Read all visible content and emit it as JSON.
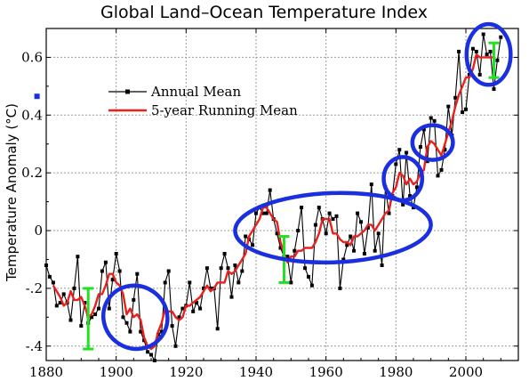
{
  "chart_data": {
    "type": "line",
    "title": "Global Land–Ocean Temperature Index",
    "xlabel": "",
    "ylabel": "Temperature Anomaly (°C)",
    "xlim": [
      1880,
      2015
    ],
    "ylim": [
      -0.45,
      0.7
    ],
    "xticks": [
      1880,
      1900,
      1920,
      1940,
      1960,
      1980,
      2000
    ],
    "xtick_labels": [
      "1880",
      "1900",
      "1920",
      "1940",
      "1960",
      "1980",
      "2000"
    ],
    "yticks": [
      -0.4,
      -0.2,
      0,
      0.2,
      0.4,
      0.6
    ],
    "ytick_labels": [
      "-.4",
      "-.2",
      "0",
      "0.2",
      "0.4",
      "0.6"
    ],
    "grid": true,
    "legend_position": "upper-left",
    "series": [
      {
        "name": "Annual Mean",
        "color": "#000000",
        "marker": "square",
        "x": [
          1880,
          1881,
          1882,
          1883,
          1884,
          1885,
          1886,
          1887,
          1888,
          1889,
          1890,
          1891,
          1892,
          1893,
          1894,
          1895,
          1896,
          1897,
          1898,
          1899,
          1900,
          1901,
          1902,
          1903,
          1904,
          1905,
          1906,
          1907,
          1908,
          1909,
          1910,
          1911,
          1912,
          1913,
          1914,
          1915,
          1916,
          1917,
          1918,
          1919,
          1920,
          1921,
          1922,
          1923,
          1924,
          1925,
          1926,
          1927,
          1928,
          1929,
          1930,
          1931,
          1932,
          1933,
          1934,
          1935,
          1936,
          1937,
          1938,
          1939,
          1940,
          1941,
          1942,
          1943,
          1944,
          1945,
          1946,
          1947,
          1948,
          1949,
          1950,
          1951,
          1952,
          1953,
          1954,
          1955,
          1956,
          1957,
          1958,
          1959,
          1960,
          1961,
          1962,
          1963,
          1964,
          1965,
          1966,
          1967,
          1968,
          1969,
          1970,
          1971,
          1972,
          1973,
          1974,
          1975,
          1976,
          1977,
          1978,
          1979,
          1980,
          1981,
          1982,
          1983,
          1984,
          1985,
          1986,
          1987,
          1988,
          1989,
          1990,
          1991,
          1992,
          1993,
          1994,
          1995,
          1996,
          1997,
          1998,
          1999,
          2000,
          2001,
          2002,
          2003,
          2004,
          2005,
          2006,
          2007,
          2008,
          2009,
          2010
        ],
        "y": [
          -0.12,
          -0.16,
          -0.18,
          -0.26,
          -0.25,
          -0.22,
          -0.25,
          -0.31,
          -0.2,
          -0.09,
          -0.33,
          -0.25,
          -0.32,
          -0.3,
          -0.29,
          -0.27,
          -0.14,
          -0.11,
          -0.27,
          -0.17,
          -0.08,
          -0.14,
          -0.3,
          -0.32,
          -0.35,
          -0.24,
          -0.15,
          -0.35,
          -0.38,
          -0.42,
          -0.43,
          -0.45,
          -0.36,
          -0.35,
          -0.18,
          -0.14,
          -0.33,
          -0.4,
          -0.3,
          -0.27,
          -0.26,
          -0.18,
          -0.28,
          -0.25,
          -0.27,
          -0.2,
          -0.13,
          -0.2,
          -0.2,
          -0.34,
          -0.13,
          -0.08,
          -0.13,
          -0.23,
          -0.12,
          -0.18,
          -0.14,
          -0.02,
          -0.03,
          -0.05,
          0.06,
          0.08,
          0.06,
          0.06,
          0.14,
          0.04,
          -0.01,
          -0.06,
          -0.09,
          -0.09,
          -0.18,
          -0.07,
          0.0,
          0.08,
          -0.13,
          -0.16,
          -0.19,
          0.02,
          0.08,
          0.04,
          -0.01,
          0.06,
          0.04,
          0.05,
          -0.2,
          -0.1,
          -0.05,
          -0.02,
          -0.07,
          0.06,
          0.03,
          -0.08,
          0.01,
          0.16,
          -0.07,
          -0.01,
          -0.12,
          0.15,
          0.06,
          0.12,
          0.23,
          0.28,
          0.09,
          0.27,
          0.12,
          0.08,
          0.15,
          0.29,
          0.35,
          0.24,
          0.39,
          0.38,
          0.19,
          0.21,
          0.28,
          0.43,
          0.33,
          0.46,
          0.62,
          0.41,
          0.42,
          0.54,
          0.63,
          0.62,
          0.54,
          0.68,
          0.61,
          0.62,
          0.49,
          0.59,
          0.67
        ]
      },
      {
        "name": "5-year Running Mean",
        "color": "#e8201e",
        "x": [
          1882,
          1883,
          1884,
          1885,
          1886,
          1887,
          1888,
          1889,
          1890,
          1891,
          1892,
          1893,
          1894,
          1895,
          1896,
          1897,
          1898,
          1899,
          1900,
          1901,
          1902,
          1903,
          1904,
          1905,
          1906,
          1907,
          1908,
          1909,
          1910,
          1911,
          1912,
          1913,
          1914,
          1915,
          1916,
          1917,
          1918,
          1919,
          1920,
          1921,
          1922,
          1923,
          1924,
          1925,
          1926,
          1927,
          1928,
          1929,
          1930,
          1931,
          1932,
          1933,
          1934,
          1935,
          1936,
          1937,
          1938,
          1939,
          1940,
          1941,
          1942,
          1943,
          1944,
          1945,
          1946,
          1947,
          1948,
          1949,
          1950,
          1951,
          1952,
          1953,
          1954,
          1955,
          1956,
          1957,
          1958,
          1959,
          1960,
          1961,
          1962,
          1963,
          1964,
          1965,
          1966,
          1967,
          1968,
          1969,
          1970,
          1971,
          1972,
          1973,
          1974,
          1975,
          1976,
          1977,
          1978,
          1979,
          1980,
          1981,
          1982,
          1983,
          1984,
          1985,
          1986,
          1987,
          1988,
          1989,
          1990,
          1991,
          1992,
          1993,
          1994,
          1995,
          1996,
          1997,
          1998,
          1999,
          2000,
          2001,
          2002,
          2003,
          2004,
          2005,
          2006,
          2007,
          2008
        ],
        "y": [
          -0.19,
          -0.21,
          -0.23,
          -0.26,
          -0.25,
          -0.21,
          -0.24,
          -0.24,
          -0.23,
          -0.26,
          -0.3,
          -0.29,
          -0.26,
          -0.22,
          -0.22,
          -0.19,
          -0.15,
          -0.15,
          -0.18,
          -0.19,
          -0.22,
          -0.29,
          -0.27,
          -0.3,
          -0.29,
          -0.31,
          -0.37,
          -0.4,
          -0.41,
          -0.4,
          -0.35,
          -0.32,
          -0.27,
          -0.28,
          -0.28,
          -0.3,
          -0.31,
          -0.3,
          -0.26,
          -0.26,
          -0.25,
          -0.24,
          -0.23,
          -0.21,
          -0.19,
          -0.21,
          -0.2,
          -0.18,
          -0.18,
          -0.18,
          -0.14,
          -0.15,
          -0.14,
          -0.12,
          -0.1,
          -0.08,
          -0.02,
          0.0,
          0.02,
          0.04,
          0.08,
          0.08,
          0.06,
          0.04,
          0.03,
          -0.04,
          -0.08,
          -0.11,
          -0.09,
          -0.09,
          -0.07,
          -0.07,
          -0.06,
          -0.06,
          -0.06,
          -0.04,
          -0.01,
          0.04,
          0.04,
          0.04,
          -0.01,
          -0.01,
          -0.03,
          -0.04,
          -0.04,
          -0.05,
          -0.02,
          -0.02,
          -0.01,
          0.0,
          0.02,
          0.02,
          0.0,
          0.02,
          0.04,
          0.06,
          0.07,
          0.13,
          0.15,
          0.2,
          0.19,
          0.16,
          0.18,
          0.16,
          0.17,
          0.2,
          0.21,
          0.29,
          0.31,
          0.3,
          0.28,
          0.26,
          0.3,
          0.34,
          0.38,
          0.43,
          0.47,
          0.5,
          0.53,
          0.53,
          0.56,
          0.61,
          0.6,
          0.6,
          0.6,
          0.6,
          0.6
        ]
      }
    ],
    "error_bars": [
      {
        "x": 1892,
        "y_low": -0.41,
        "y_high": -0.2,
        "color": "#22e022"
      },
      {
        "x": 1948,
        "y_low": -0.18,
        "y_high": -0.02,
        "color": "#22e022"
      },
      {
        "x": 2008,
        "y_low": 0.53,
        "y_high": 0.65,
        "color": "#22e022"
      }
    ],
    "highlight_color": "#1a2fe0",
    "highlights": [
      {
        "cx": 1905.5,
        "cy": -0.3,
        "rx": 9.3,
        "ry": 0.108,
        "rotate": 35
      },
      {
        "cx": 1962,
        "cy": 0.01,
        "rx": 28,
        "ry": 0.12,
        "rotate": -2
      },
      {
        "cx": 1982,
        "cy": 0.18,
        "rx": 5.5,
        "ry": 0.075,
        "rotate": 0
      },
      {
        "cx": 1990.5,
        "cy": 0.305,
        "rx": 5.8,
        "ry": 0.06,
        "rotate": 0
      },
      {
        "cx": 2006.5,
        "cy": 0.61,
        "rx": 6.3,
        "ry": 0.105,
        "rotate": 0
      }
    ],
    "blue_mark": {
      "x": 1879.9,
      "y": 0.465
    }
  }
}
